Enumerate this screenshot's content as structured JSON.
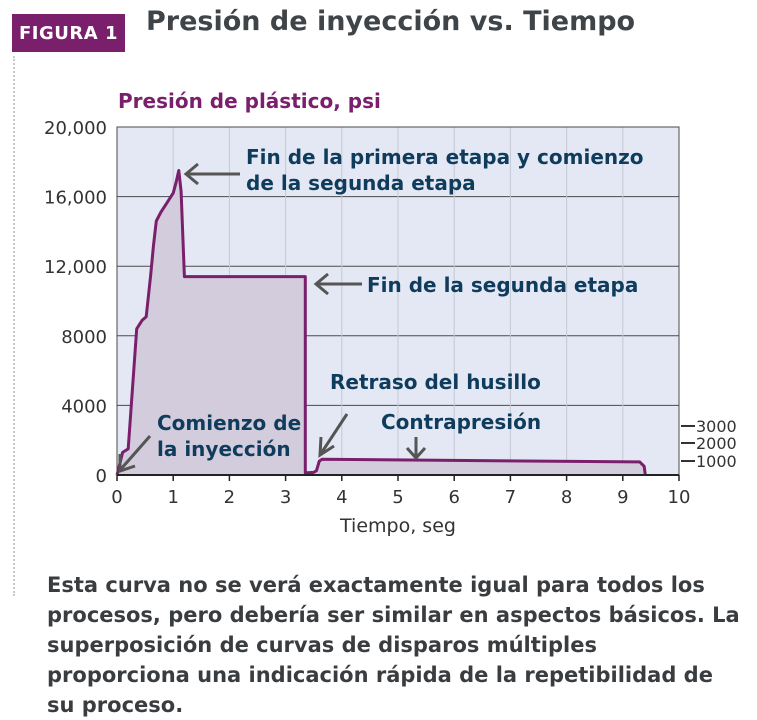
{
  "figure": {
    "badge": "FIGURA 1",
    "title": "Presión de inyección vs. Tiempo"
  },
  "chart_data": {
    "type": "area",
    "ylabel": "Presión de plástico, psi",
    "xlabel": "Tiempo, seg",
    "xlim": [
      0,
      10
    ],
    "ylim": [
      0,
      20000
    ],
    "x_ticks": [
      "0",
      "1",
      "2",
      "3",
      "4",
      "5",
      "6",
      "7",
      "8",
      "9",
      "10"
    ],
    "y_ticks": [
      "0",
      "4000",
      "8000",
      "12,000",
      "16,000",
      "20,000"
    ],
    "grid": "horizontal",
    "x": [
      0,
      0.1,
      0.2,
      0.35,
      0.45,
      0.52,
      0.6,
      0.65,
      0.7,
      0.78,
      0.9,
      1.0,
      1.05,
      1.1,
      1.14,
      1.2,
      3.35,
      3.35,
      3.5,
      3.55,
      3.6,
      3.65,
      9.3,
      9.38,
      9.4
    ],
    "y": [
      0,
      1300,
      1500,
      8400,
      8900,
      9100,
      11500,
      13200,
      14600,
      15100,
      15700,
      16200,
      16800,
      17500,
      16300,
      11400,
      11400,
      120,
      150,
      250,
      800,
      900,
      750,
      500,
      0
    ],
    "secondary_axis": {
      "ticks": [
        "3000",
        "2000",
        "1000"
      ]
    },
    "annotations": {
      "first_stage": "Fin de la primera etapa y comienzo de la segunda etapa",
      "first_stage_line1": "Fin de la primera etapa y comienzo",
      "first_stage_line2": "de la segunda etapa",
      "second_stage": "Fin de la segunda etapa",
      "screw_delay": "Retraso del husillo",
      "back_pressure": "Contrapresión",
      "injection_start": "Comienzo de la inyección",
      "injection_start_line1": "Comienzo de",
      "injection_start_line2": "la inyección"
    },
    "colors": {
      "plot_bg": "#e4e8f4",
      "fill": "#d3ccdc",
      "line": "#7a1f6c",
      "annotation": "#0f3c5c",
      "grid": "#4a4a4a"
    }
  },
  "caption": "Esta curva no se verá exactamente igual para todos los procesos, pero debería ser similar en aspectos básicos. La superposición de curvas de disparos múltiples proporciona una indicación rápida de la repetibilidad de su proceso."
}
